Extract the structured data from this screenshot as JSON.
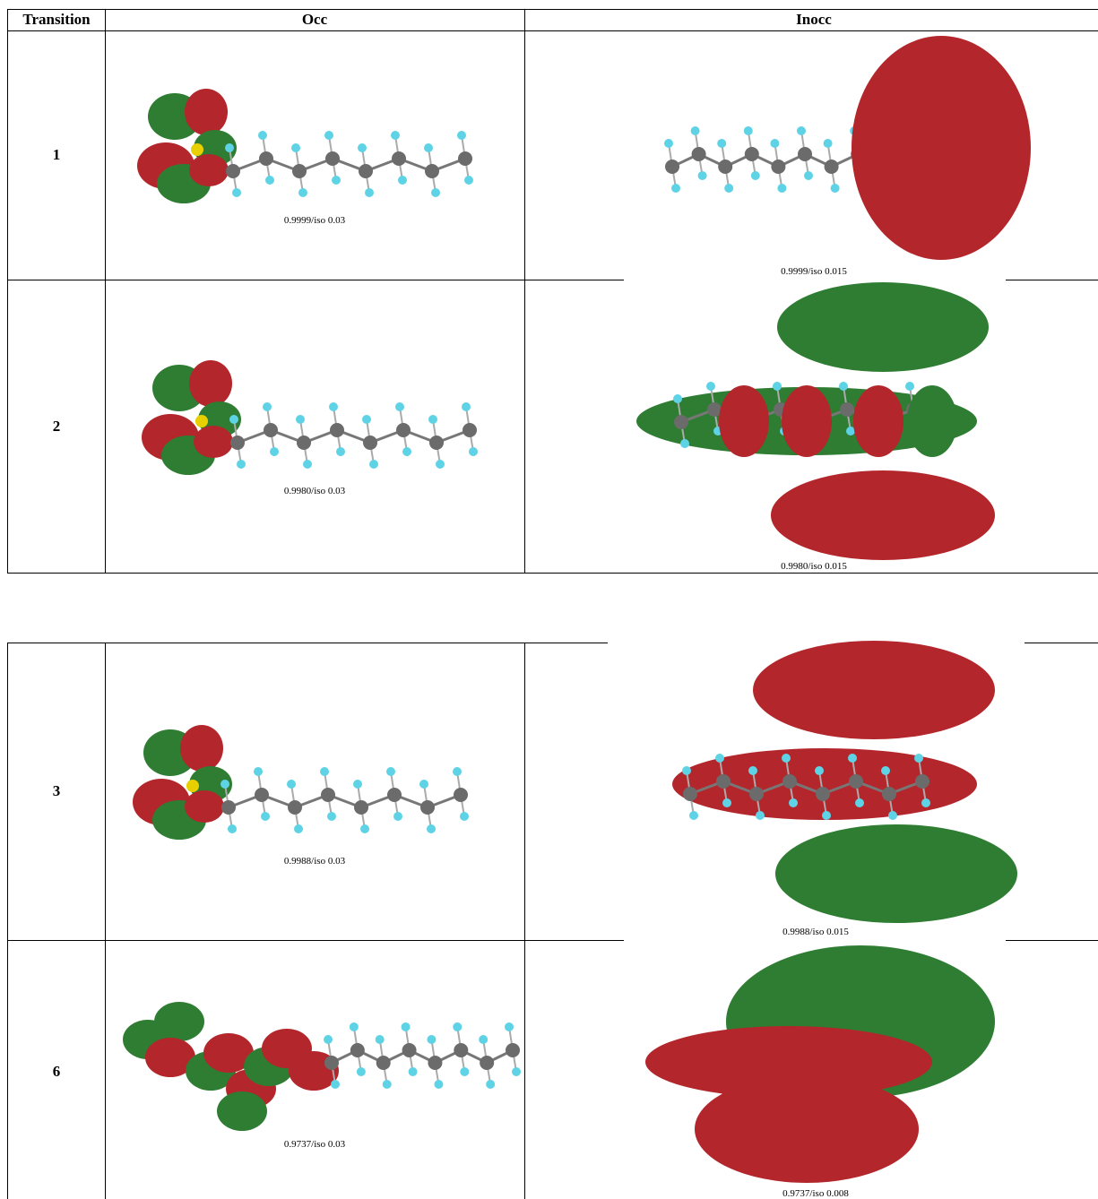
{
  "header": {
    "transition": "Transition",
    "occ": "Occ",
    "inocc": "Inocc"
  },
  "rows": [
    {
      "transition": "1",
      "occ_caption": "0.9999/iso 0.03",
      "inocc_caption": "0.9999/iso 0.015"
    },
    {
      "transition": "2",
      "occ_caption": "0.9980/iso 0.03",
      "inocc_caption": "0.9980/iso 0.015"
    },
    {
      "transition": "3",
      "occ_caption": "0.9988/iso 0.03",
      "inocc_caption": "0.9988/iso 0.015"
    },
    {
      "transition": "6",
      "occ_caption": "0.9737/iso 0.03",
      "inocc_caption": "0.9737/iso 0.008"
    }
  ]
}
